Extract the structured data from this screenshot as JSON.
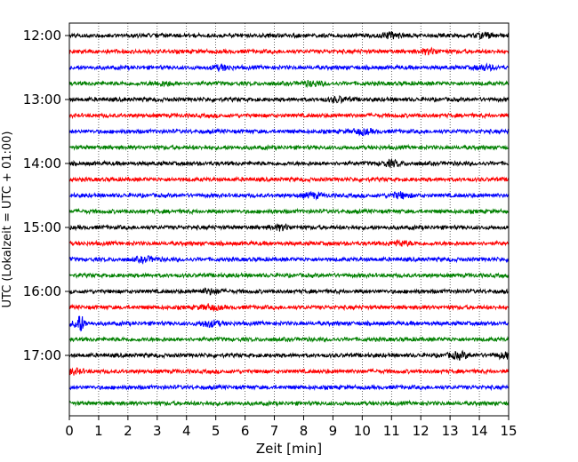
{
  "chart_data": {
    "type": "line",
    "xlabel": "Zeit  [min]",
    "ylabel": "UTC (Lokalzeit = UTC + 01:00)",
    "xlim": [
      0,
      15
    ],
    "x_ticks": [
      0,
      1,
      2,
      3,
      4,
      5,
      6,
      7,
      8,
      9,
      10,
      11,
      12,
      13,
      14,
      15
    ],
    "y_tick_labels": [
      "12:00",
      "13:00",
      "14:00",
      "15:00",
      "16:00",
      "17:00"
    ],
    "grid": "vertical dotted at every minute",
    "trace_interval_minutes": 15,
    "trace_count": 24,
    "trace_colors": [
      "#000000",
      "#ff0000",
      "#0000ff",
      "#008000"
    ],
    "events": [
      {
        "trace": 0,
        "minute": 11.0,
        "strength": 1.2
      },
      {
        "trace": 0,
        "minute": 14.2,
        "strength": 0.9
      },
      {
        "trace": 1,
        "minute": 12.3,
        "strength": 1.0
      },
      {
        "trace": 2,
        "minute": 5.2,
        "strength": 0.9
      },
      {
        "trace": 2,
        "minute": 14.2,
        "strength": 1.0
      },
      {
        "trace": 3,
        "minute": 3.2,
        "strength": 0.8
      },
      {
        "trace": 3,
        "minute": 8.3,
        "strength": 1.0
      },
      {
        "trace": 4,
        "minute": 9.2,
        "strength": 1.0
      },
      {
        "trace": 6,
        "minute": 10.0,
        "strength": 1.1
      },
      {
        "trace": 8,
        "minute": 11.0,
        "strength": 1.2
      },
      {
        "trace": 10,
        "minute": 8.3,
        "strength": 1.0
      },
      {
        "trace": 10,
        "minute": 11.3,
        "strength": 1.2
      },
      {
        "trace": 12,
        "minute": 7.2,
        "strength": 1.0
      },
      {
        "trace": 13,
        "minute": 11.3,
        "strength": 1.0
      },
      {
        "trace": 14,
        "minute": 2.6,
        "strength": 1.0
      },
      {
        "trace": 16,
        "minute": 4.8,
        "strength": 1.0
      },
      {
        "trace": 17,
        "minute": 4.8,
        "strength": 1.0
      },
      {
        "trace": 18,
        "minute": 0.35,
        "strength": 4.2
      },
      {
        "trace": 18,
        "minute": 4.8,
        "strength": 1.3
      },
      {
        "trace": 20,
        "minute": 13.3,
        "strength": 1.3
      },
      {
        "trace": 20,
        "minute": 14.9,
        "strength": 1.1
      },
      {
        "trace": 21,
        "minute": 0.1,
        "strength": 1.1
      }
    ]
  }
}
